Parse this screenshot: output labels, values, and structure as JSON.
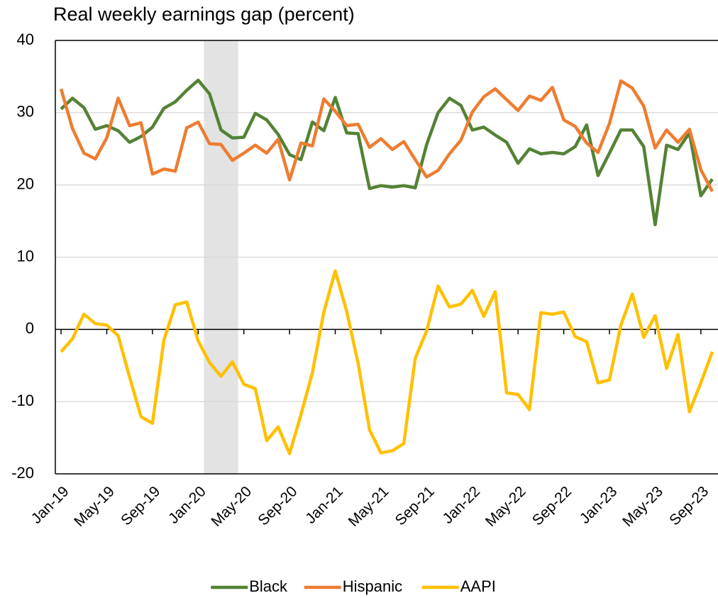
{
  "chart_data": {
    "type": "line",
    "title": "Real weekly earnings gap (percent)",
    "categories": [
      "Jan-19",
      null,
      null,
      null,
      "May-19",
      null,
      null,
      null,
      "Sep-19",
      null,
      null,
      null,
      "Jan-20",
      null,
      null,
      null,
      "May-20",
      null,
      null,
      null,
      "Sep-20",
      null,
      null,
      null,
      "Jan-21",
      null,
      null,
      null,
      "May-21",
      null,
      null,
      null,
      "Sep-21",
      null,
      null,
      null,
      "Jan-22",
      null,
      null,
      null,
      "May-22",
      null,
      null,
      null,
      "Sep-22",
      null,
      null,
      null,
      "Jan-23",
      null,
      null,
      null,
      "May-23",
      null,
      null,
      null,
      "Sep-23",
      null
    ],
    "series": [
      {
        "name": "Black",
        "color": "#548235",
        "values": [
          30.5,
          32,
          30.7,
          27.7,
          28.2,
          27.5,
          25.9,
          26.7,
          28,
          30.6,
          31.5,
          33.1,
          34.5,
          32.6,
          27.6,
          26.5,
          26.6,
          29.9,
          29,
          27,
          24.2,
          23.5,
          28.7,
          27.5,
          32.1,
          27.2,
          27.1,
          19.5,
          19.9,
          19.7,
          19.9,
          19.6,
          25.6,
          30,
          32,
          31,
          27.6,
          28,
          26.9,
          25.9,
          23,
          25,
          24.3,
          24.5,
          24.3,
          25.3,
          28.3,
          21.3,
          24.4,
          27.6,
          27.6,
          25.3,
          14.5,
          25.5,
          24.9,
          27.2,
          18.5,
          20.8
        ]
      },
      {
        "name": "Hispanic",
        "color": "#ED7D31",
        "values": [
          33.3,
          27.8,
          24.4,
          23.6,
          26.5,
          32,
          28.2,
          28.6,
          21.5,
          22.2,
          21.9,
          27.9,
          28.7,
          25.7,
          25.6,
          23.4,
          24.4,
          25.5,
          24.4,
          26.3,
          20.7,
          25.8,
          25.4,
          31.9,
          30.2,
          28.2,
          28.4,
          25.2,
          26.4,
          24.9,
          26,
          23.5,
          21.1,
          22,
          24.3,
          26.2,
          30.1,
          32.2,
          33.3,
          31.8,
          30.3,
          32.3,
          31.7,
          33.5,
          29,
          28.1,
          25.8,
          24.5,
          28.5,
          34.4,
          33.4,
          30.9,
          25.1,
          27.6,
          25.9,
          27.7,
          22.1,
          19.1
        ]
      },
      {
        "name": "AAPI",
        "color": "#FFC000",
        "values": [
          -3.1,
          -1.3,
          2.1,
          0.8,
          0.6,
          -0.9,
          -6.6,
          -12.1,
          -13,
          -1.5,
          3.4,
          3.8,
          -1.6,
          -4.6,
          -6.5,
          -4.5,
          -7.6,
          -8.2,
          -15.4,
          -13.5,
          -17.2,
          -11.8,
          -6,
          2.4,
          8.1,
          2.5,
          -4.7,
          -13.9,
          -17.1,
          -16.8,
          -15.8,
          -4,
          -0.2,
          6,
          3.1,
          3.5,
          5.4,
          1.8,
          5.2,
          -8.8,
          -9,
          -11.1,
          2.3,
          2.1,
          2.4,
          -1,
          -1.7,
          -7.4,
          -7,
          0.6,
          4.9,
          -1.1,
          1.9,
          -5.4,
          -0.7,
          -11.4,
          -7.4,
          -3.1
        ]
      }
    ],
    "ylim": [
      -20,
      40
    ],
    "yticks": [
      -20,
      -10,
      0,
      10,
      20,
      30,
      40
    ],
    "grid": true,
    "shaded_range": [
      13,
      15
    ],
    "shade_color": "#e3e3e3",
    "legend": "bottom"
  }
}
